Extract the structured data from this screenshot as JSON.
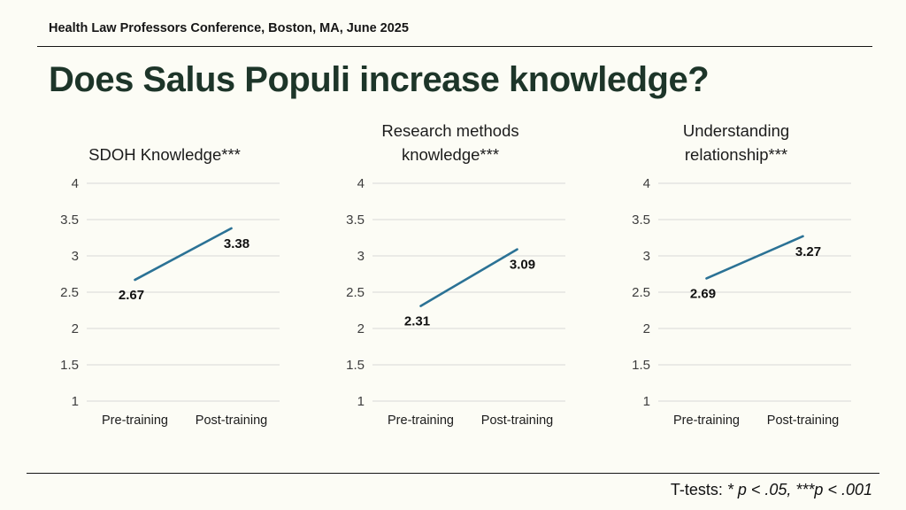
{
  "slide": {
    "header": "Health Law Professors Conference, Boston, MA, June 2025",
    "title": "Does Salus Populi increase knowledge?",
    "footer": {
      "prefix": "T-tests: ",
      "italic": "* p < .05,  ***p < .001"
    }
  },
  "colors": {
    "background": "#fcfcf5",
    "title_text": "#1d3529",
    "header_text": "#161616",
    "line": "#2b7295",
    "grid": "#d8d8d8",
    "tick_text": "#3d3d3d",
    "category_text": "#1c1c1c",
    "data_label": "#111111"
  },
  "chart_data": [
    {
      "type": "line",
      "title": "SDOH Knowledge***",
      "title_lines": [
        "SDOH Knowledge***"
      ],
      "categories": [
        "Pre-training",
        "Post-training"
      ],
      "values": [
        2.67,
        3.38
      ],
      "ylim": [
        1,
        4
      ],
      "yticks": [
        1,
        1.5,
        2,
        2.5,
        3,
        3.5,
        4
      ],
      "grid": true,
      "xlabel": "",
      "ylabel": "",
      "legend": false
    },
    {
      "type": "line",
      "title": "Research methods knowledge***",
      "title_lines": [
        "Research methods",
        "knowledge***"
      ],
      "categories": [
        "Pre-training",
        "Post-training"
      ],
      "values": [
        2.31,
        3.09
      ],
      "ylim": [
        1,
        4
      ],
      "yticks": [
        1,
        1.5,
        2,
        2.5,
        3,
        3.5,
        4
      ],
      "grid": true,
      "xlabel": "",
      "ylabel": "",
      "legend": false
    },
    {
      "type": "line",
      "title": "Understanding relationship***",
      "title_lines": [
        "Understanding",
        "relationship***"
      ],
      "categories": [
        "Pre-training",
        "Post-training"
      ],
      "values": [
        2.69,
        3.27
      ],
      "ylim": [
        1,
        4
      ],
      "yticks": [
        1,
        1.5,
        2,
        2.5,
        3,
        3.5,
        4
      ],
      "grid": true,
      "xlabel": "",
      "ylabel": "",
      "legend": false
    }
  ]
}
